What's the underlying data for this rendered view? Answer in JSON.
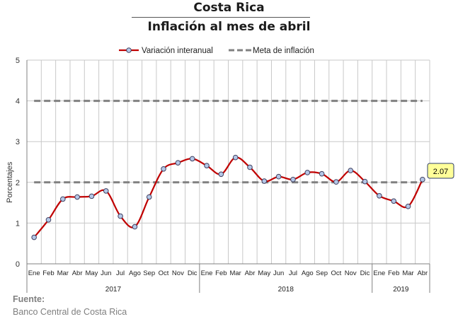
{
  "header": {
    "title": "Costa Rica",
    "subtitle": "Inflación al mes de abril"
  },
  "source": {
    "label": "Fuente:",
    "text": "Banco Central de Costa Rica"
  },
  "chart_data": {
    "type": "line",
    "categories": [
      "Ene",
      "Feb",
      "Mar",
      "Abr",
      "May",
      "Jun",
      "Jul",
      "Ago",
      "Sep",
      "Oct",
      "Nov",
      "Dic",
      "Ene",
      "Feb",
      "Mar",
      "Abr",
      "May",
      "Jun",
      "Jul",
      "Ago",
      "Sep",
      "Oct",
      "Nov",
      "Dic",
      "Ene",
      "Feb",
      "Mar",
      "Abr"
    ],
    "year_groups": [
      {
        "label": "2017",
        "count": 12
      },
      {
        "label": "2018",
        "count": 12
      },
      {
        "label": "2019",
        "count": 4
      }
    ],
    "series": [
      {
        "name": "Variación interanual",
        "values": [
          0.65,
          1.08,
          1.59,
          1.64,
          1.66,
          1.79,
          1.17,
          0.91,
          1.64,
          2.33,
          2.48,
          2.58,
          2.41,
          2.2,
          2.61,
          2.37,
          2.03,
          2.14,
          2.07,
          2.24,
          2.21,
          2.01,
          2.29,
          2.02,
          1.67,
          1.54,
          1.41,
          2.07
        ],
        "color": "#c00000"
      },
      {
        "name": "Meta de inflación",
        "band": [
          2,
          4
        ],
        "color": "#808080"
      }
    ],
    "ylabel": "Porcentajes",
    "ylim": [
      0,
      5
    ],
    "yticks": [
      "0",
      "1",
      "2",
      "3",
      "4",
      "5"
    ],
    "callout": {
      "text": "2.07",
      "fill": "#ffff99"
    },
    "grid": true,
    "legend": "top"
  }
}
